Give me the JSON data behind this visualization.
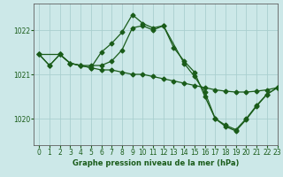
{
  "title": "Graphe pression niveau de la mer (hPa)",
  "background_color": "#cce8e8",
  "grid_color": "#aacfcf",
  "line_color": "#1a5c1a",
  "xlim": [
    -0.5,
    23
  ],
  "ylim": [
    1019.4,
    1022.6
  ],
  "yticks": [
    1020,
    1021,
    1022
  ],
  "xticks": [
    0,
    1,
    2,
    3,
    4,
    5,
    6,
    7,
    8,
    9,
    10,
    11,
    12,
    13,
    14,
    15,
    16,
    17,
    18,
    19,
    20,
    21,
    22,
    23
  ],
  "series1_x": [
    0,
    1,
    2,
    3,
    4,
    5,
    6,
    7,
    8,
    9,
    10,
    11,
    12,
    13,
    14,
    15,
    16,
    17,
    18,
    19,
    20,
    21,
    22,
    23
  ],
  "series1_y": [
    1021.45,
    1021.2,
    1021.45,
    1021.25,
    1021.2,
    1021.15,
    1021.1,
    1021.1,
    1021.05,
    1021.0,
    1021.0,
    1020.95,
    1020.9,
    1020.85,
    1020.8,
    1020.75,
    1020.7,
    1020.65,
    1020.62,
    1020.6,
    1020.6,
    1020.62,
    1020.65,
    1020.7
  ],
  "series2_x": [
    0,
    1,
    2,
    3,
    4,
    5,
    6,
    7,
    8,
    9,
    10,
    11,
    12,
    13,
    14,
    15,
    16,
    17,
    18,
    19,
    20,
    21,
    22,
    23
  ],
  "series2_y": [
    1021.45,
    1021.2,
    1021.45,
    1021.25,
    1021.2,
    1021.15,
    1021.5,
    1021.7,
    1021.95,
    1022.35,
    1022.15,
    1022.05,
    1022.1,
    1021.6,
    1021.3,
    1021.05,
    1020.5,
    1020.0,
    1019.85,
    1019.75,
    1020.0,
    1020.3,
    1020.55,
    1020.7
  ],
  "series3_x": [
    0,
    2,
    3,
    4,
    5,
    6,
    7,
    8,
    9,
    10,
    11,
    12,
    14,
    15,
    16,
    17,
    18,
    19,
    20,
    21,
    22,
    23
  ],
  "series3_y": [
    1021.45,
    1021.45,
    1021.25,
    1021.2,
    1021.2,
    1021.2,
    1021.3,
    1021.55,
    1022.05,
    1022.1,
    1022.0,
    1022.1,
    1021.25,
    1020.95,
    1020.6,
    1020.0,
    1019.82,
    1019.72,
    1019.98,
    1020.28,
    1020.55,
    1020.7
  ]
}
